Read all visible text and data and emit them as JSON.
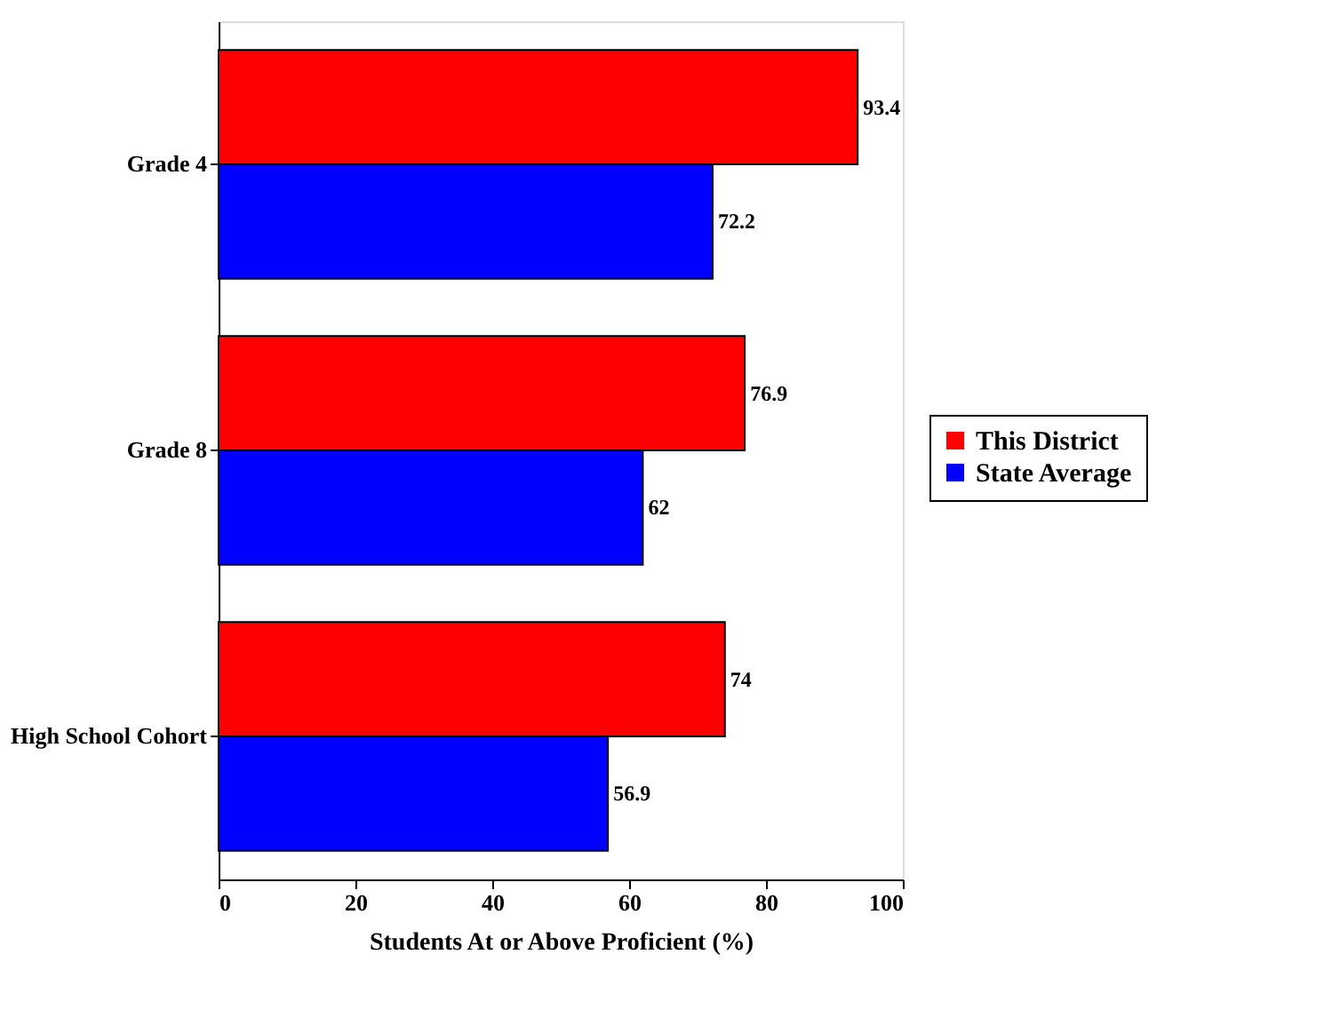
{
  "chart_data": {
    "type": "bar",
    "orientation": "horizontal",
    "xlabel": "Students At or Above Proficient (%)",
    "categories": [
      "Grade 4",
      "Grade 8",
      "High School Cohort"
    ],
    "series": [
      {
        "name": "This District",
        "color": "#ff0000",
        "values": [
          93.4,
          76.9,
          74
        ]
      },
      {
        "name": "State Average",
        "color": "#0000ff",
        "values": [
          72.2,
          62,
          56.9
        ]
      }
    ],
    "xlim": [
      0,
      100
    ],
    "xticks": [
      0,
      20,
      40,
      60,
      80,
      100
    ],
    "grid": false,
    "legend": "right",
    "data_labels": true
  }
}
